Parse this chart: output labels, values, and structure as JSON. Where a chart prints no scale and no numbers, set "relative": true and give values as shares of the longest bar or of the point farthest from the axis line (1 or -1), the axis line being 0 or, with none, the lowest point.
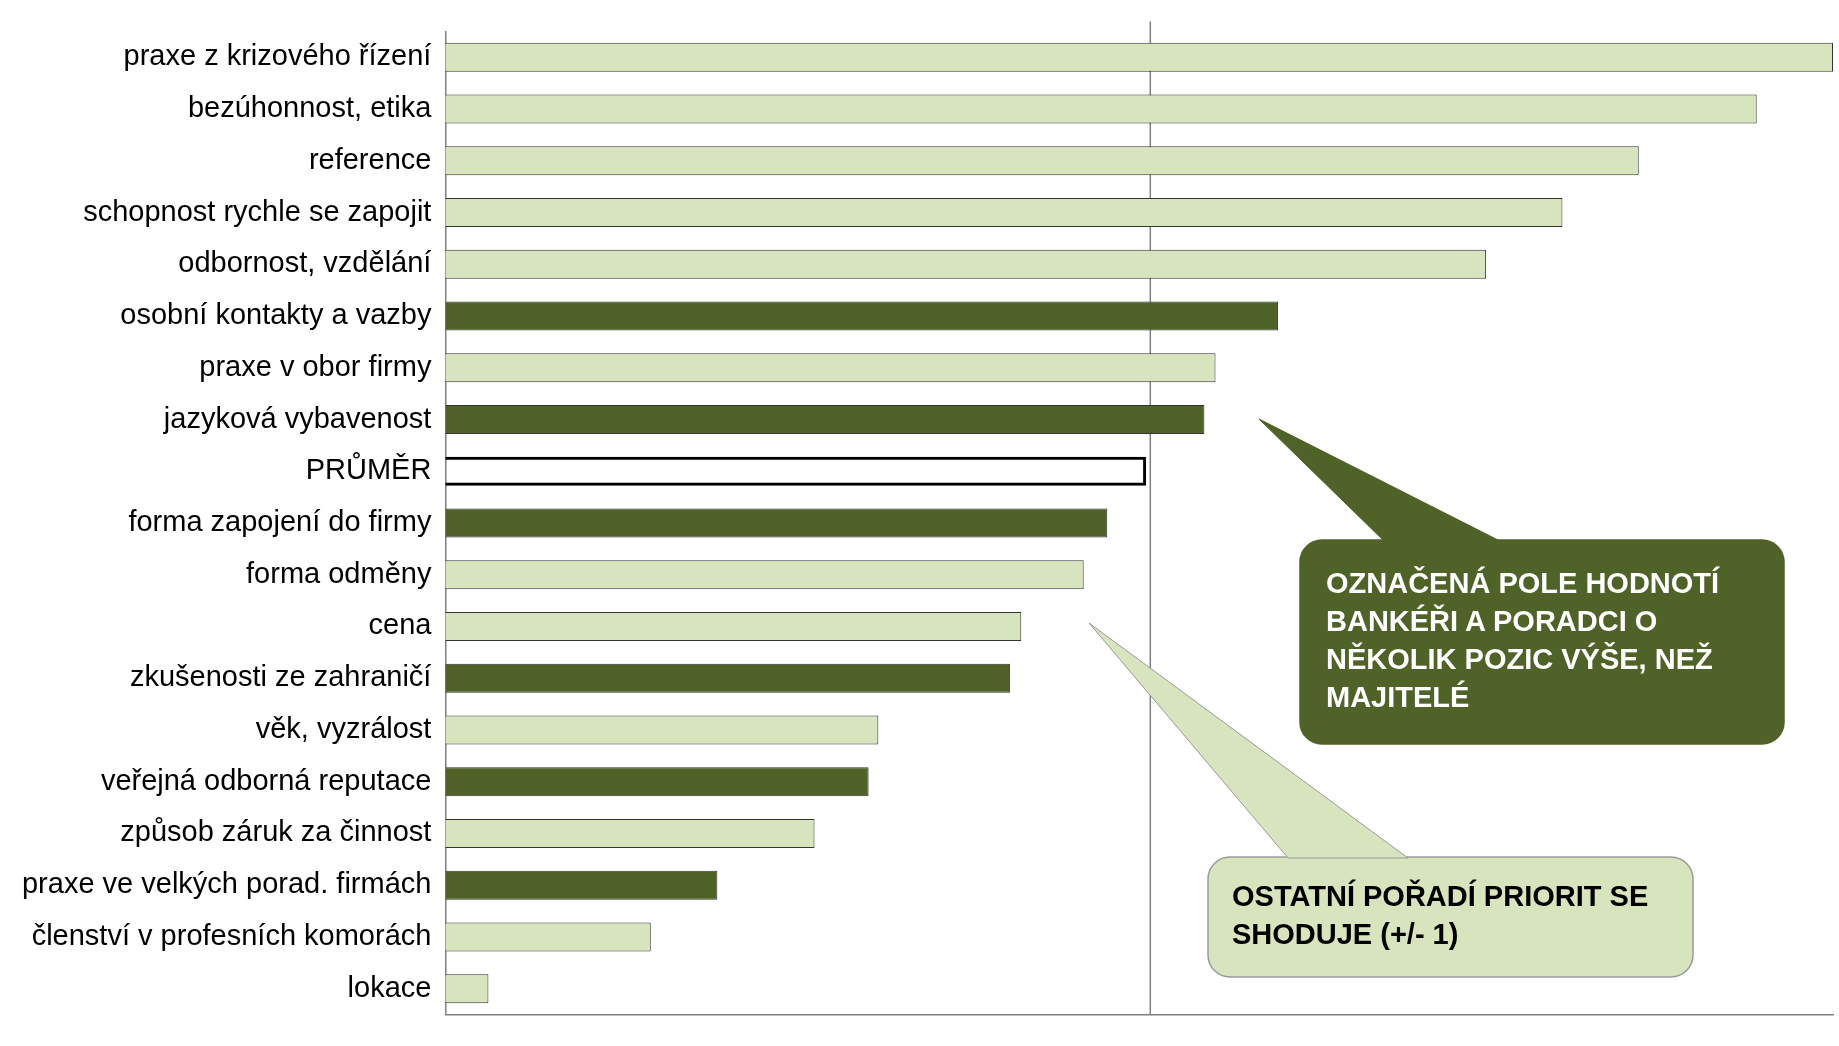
{
  "chart_data": {
    "type": "bar",
    "orientation": "horizontal",
    "relative": true,
    "categories": [
      "praxe z krizového řízení",
      "bezúhonnost, etika",
      "reference",
      "schopnost rychle se zapojit",
      "odbornost, vzdělání",
      "osobní kontakty a vazby",
      "praxe v obor firmy",
      "jazyková vybavenost",
      "PRŮMĚR",
      "forma zapojení do firmy",
      "forma odměny",
      "cena",
      "zkušenosti ze zahraničí",
      "věk, vyzrálost",
      "veřejná odborná reputace",
      "způsob záruk za činnost",
      "praxe ve velkých porad. firmách",
      "členství v profesních komorách",
      "lokace"
    ],
    "values": [
      1.0,
      0.945,
      0.86,
      0.805,
      0.75,
      0.6,
      0.555,
      0.547,
      0.505,
      0.477,
      0.46,
      0.415,
      0.407,
      0.312,
      0.305,
      0.266,
      0.196,
      0.148,
      0.031
    ],
    "colors": [
      "#d7e4bd",
      "#d7e4bd",
      "#d7e4bd",
      "#d7e4bd",
      "#d7e4bd",
      "#4f6228",
      "#d7e4bd",
      "#4f6228",
      "#000000",
      "#4f6228",
      "#d7e4bd",
      "#d7e4bd",
      "#4f6228",
      "#d7e4bd",
      "#4f6228",
      "#d7e4bd",
      "#4f6228",
      "#d7e4bd",
      "#d7e4bd"
    ],
    "ref_lines": [
      {
        "axis": "x",
        "value": 0.508,
        "color": "#808080"
      }
    ],
    "annotations": [
      "OZNAČENÁ POLE HODNOTÍ BANKÉŘI A PORADCI O NĚKOLIK POZIC VÝŠE, NEŽ MAJITELÉ",
      "OSTATNÍ POŘADÍ PRIORIT SE SHODUJE (+/- 1)"
    ],
    "grid": false,
    "legend": false
  }
}
